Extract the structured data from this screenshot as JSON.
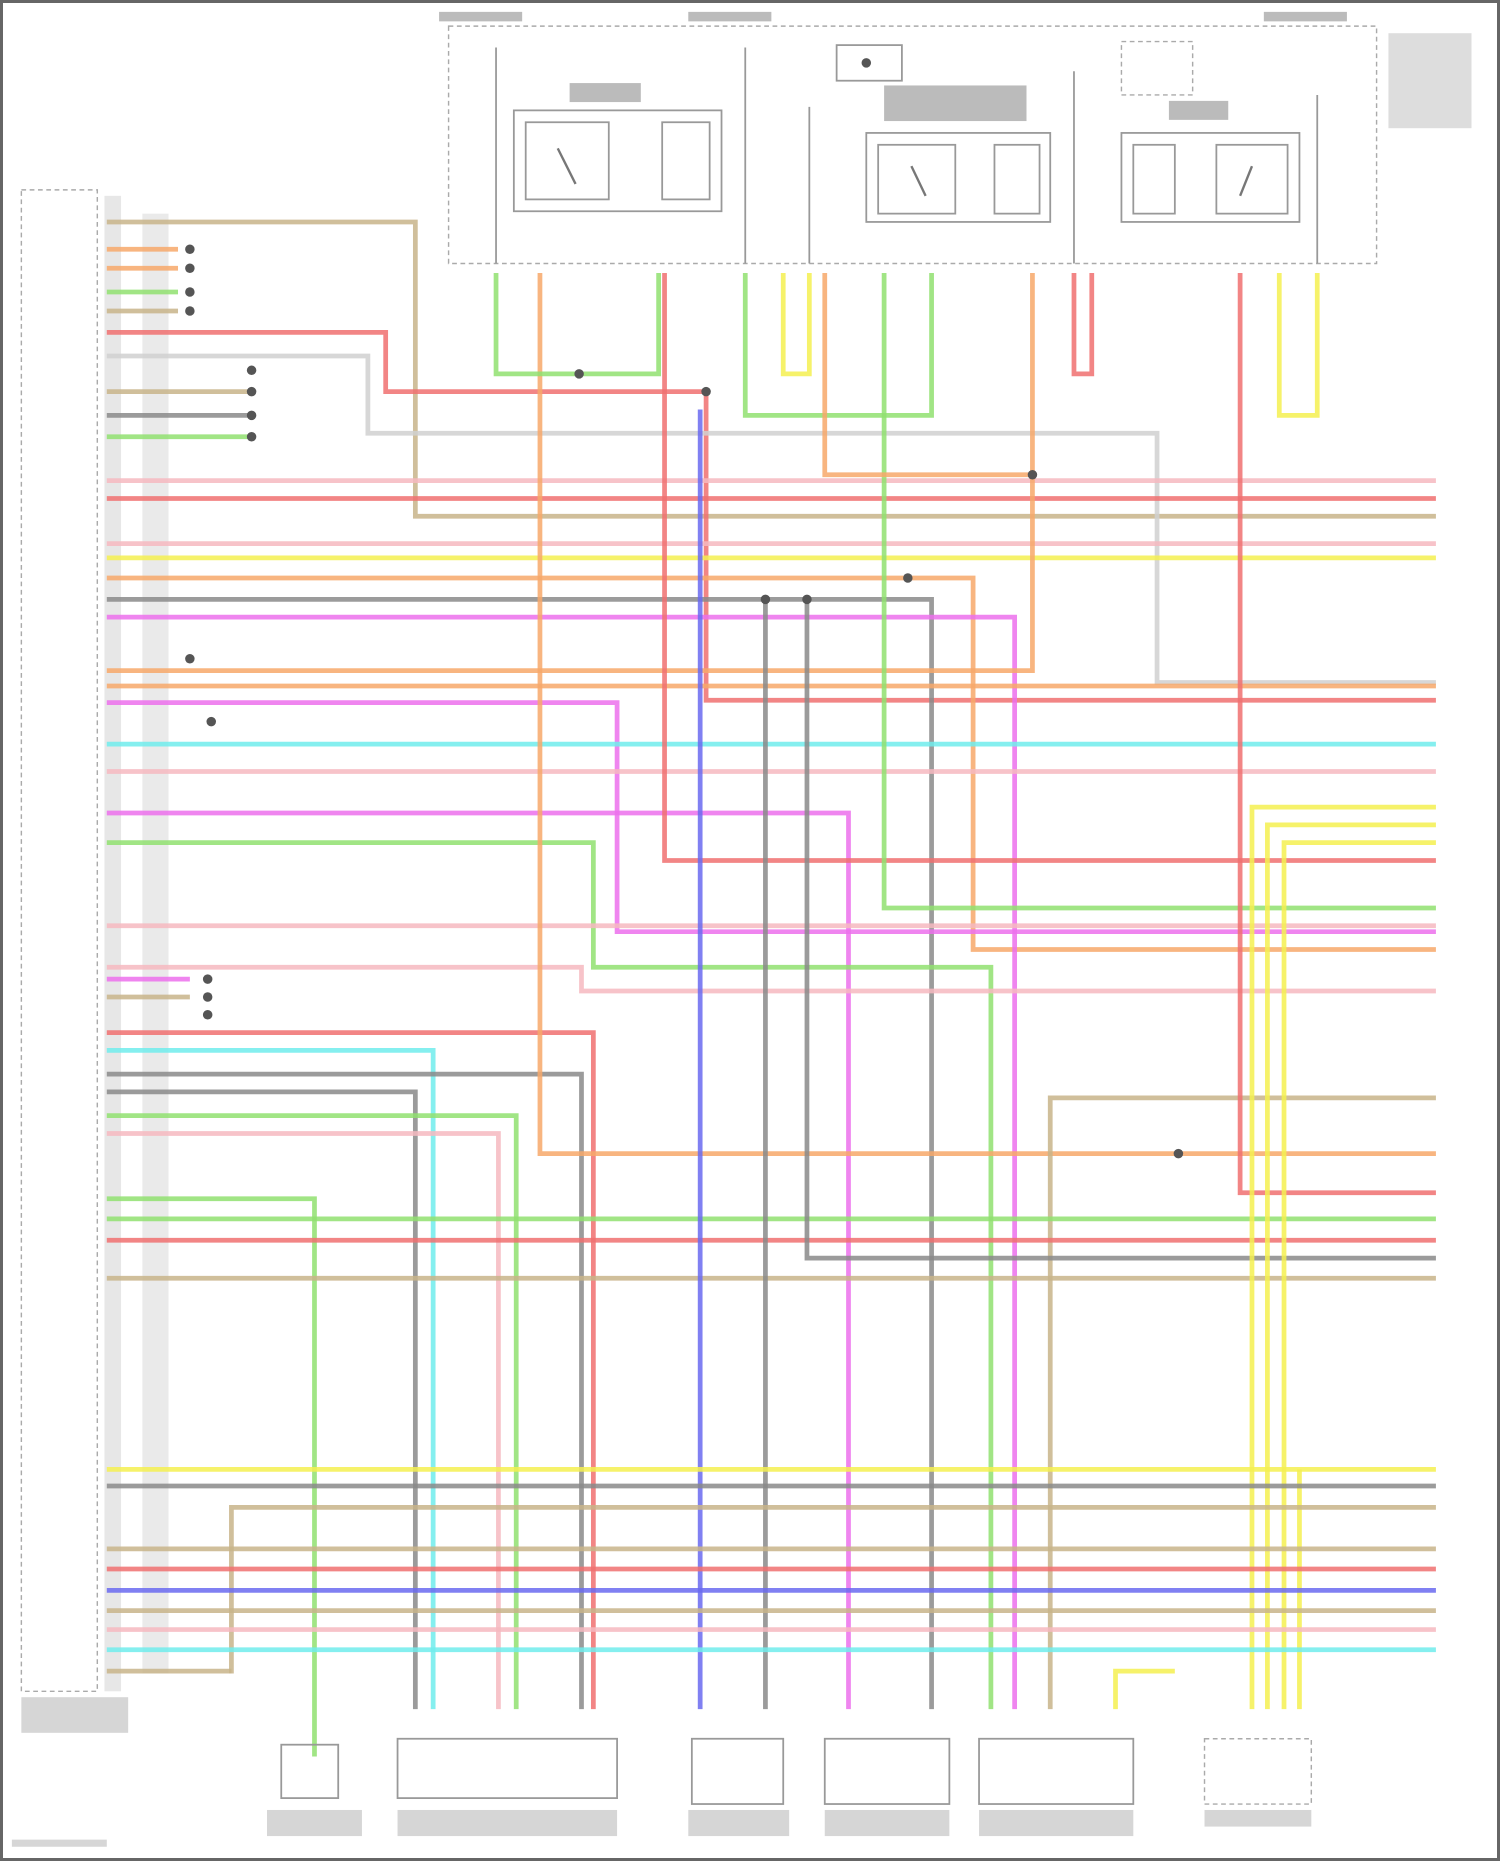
{
  "diagram": {
    "title": "",
    "wire_colors": {
      "tan": "#c8b48a",
      "red": "#f07070",
      "pink": "#f6b8c0",
      "yellow": "#f4f050",
      "orange": "#f7a86a",
      "gray": "#8a8a8a",
      "magenta": "#ec70ec",
      "cyan": "#70ecec",
      "green": "#90e070",
      "blue": "#6a6af0"
    }
  }
}
